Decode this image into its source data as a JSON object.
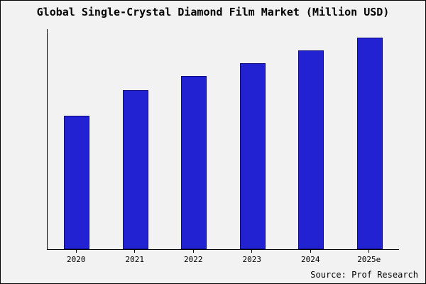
{
  "chart_data": {
    "type": "bar",
    "title": "Global Single-Crystal Diamond Film Market (Million USD)",
    "categories": [
      "2020",
      "2021",
      "2022",
      "2023",
      "2024",
      "2025e"
    ],
    "values": [
      63,
      75,
      82,
      88,
      94,
      100
    ],
    "value_note": "relative heights estimated from pixels; no y-axis tick labels shown",
    "xlabel": "",
    "ylabel": "",
    "ylim": [
      0,
      104
    ],
    "grid": false,
    "legend": false,
    "bar_color": "#2222d2",
    "bar_edge_color": "#0b0b80",
    "background_color": "#f2f2f2",
    "axis_color": "#000000"
  },
  "source": {
    "label": "Source: Prof Research"
  }
}
